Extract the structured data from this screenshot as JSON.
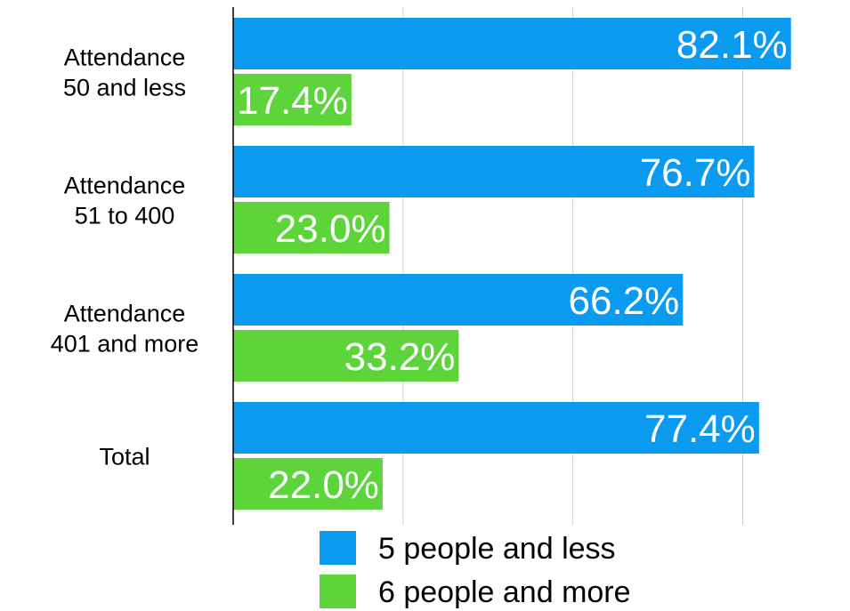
{
  "chart_data": {
    "type": "bar",
    "orientation": "horizontal",
    "categories": [
      [
        "Attendance",
        "50 and less"
      ],
      [
        "Attendance",
        "51 to 400"
      ],
      [
        "Attendance",
        "401 and more"
      ],
      [
        "Total"
      ]
    ],
    "series": [
      {
        "name": "5 people and less",
        "color": "#0a9aef",
        "values": [
          82.1,
          76.7,
          66.2,
          77.4
        ],
        "labels": [
          "82.1%",
          "76.7%",
          "66.2%",
          "77.4%"
        ]
      },
      {
        "name": "6 people and more",
        "color": "#5dd53a",
        "values": [
          17.4,
          23.0,
          33.2,
          22.0
        ],
        "labels": [
          "17.4%",
          "23.0%",
          "33.2%",
          "22.0%"
        ]
      }
    ],
    "xlim": [
      0,
      90
    ],
    "grid": true,
    "legend_position": "bottom",
    "title": "",
    "xlabel": "",
    "ylabel": ""
  }
}
